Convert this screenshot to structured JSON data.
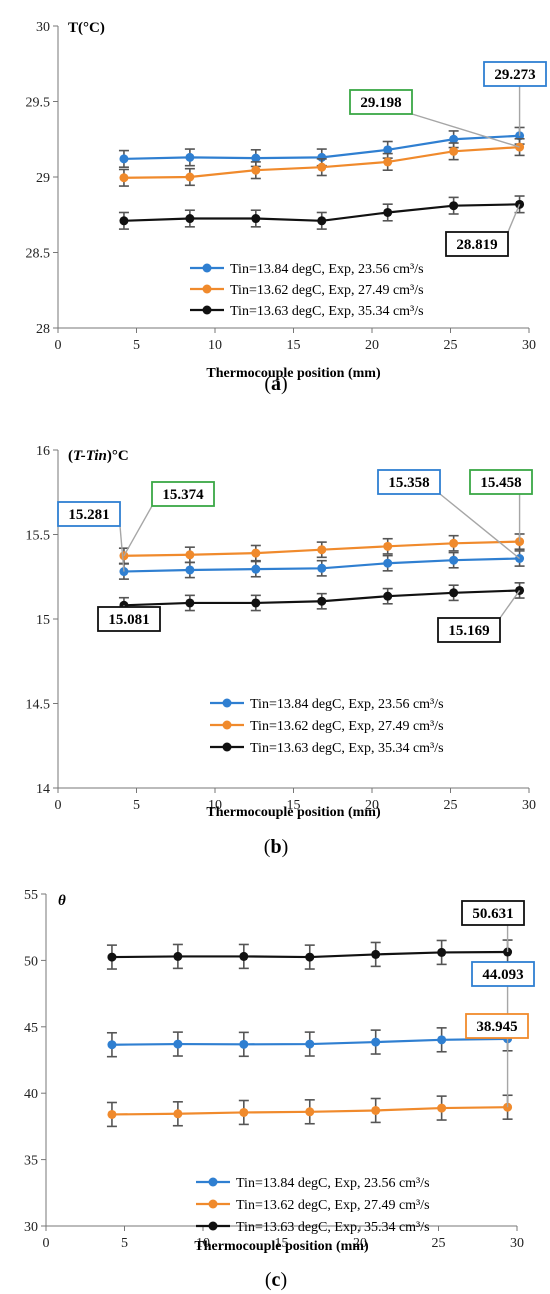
{
  "chart_data": [
    {
      "type": "line",
      "panel": "a",
      "corner_label": "T(°C)",
      "xlabel": "Thermocouple position (mm)",
      "xlim": [
        0,
        30
      ],
      "ylim": [
        28,
        30
      ],
      "xticks": [
        0,
        5,
        10,
        15,
        20,
        25,
        30
      ],
      "yticks": [
        28,
        28.5,
        29,
        29.5,
        30
      ],
      "x": [
        4.2,
        8.4,
        12.6,
        16.8,
        21,
        25.2,
        29.4
      ],
      "error": 0.055,
      "legend_position": "bottom-right",
      "series": [
        {
          "name": "Tin=13.84 degC, Exp, 23.56 cm³/s",
          "color": "#2f7fd1",
          "values": [
            29.12,
            29.13,
            29.125,
            29.13,
            29.18,
            29.25,
            29.273
          ]
        },
        {
          "name": "Tin=13.62 degC, Exp, 27.49 cm³/s",
          "color": "#f08a2c",
          "values": [
            28.995,
            29.0,
            29.045,
            29.065,
            29.1,
            29.17,
            29.198
          ]
        },
        {
          "name": "Tin=13.63 degC, Exp, 35.34 cm³/s",
          "color": "#111111",
          "values": [
            28.71,
            28.725,
            28.725,
            28.71,
            28.765,
            28.81,
            28.819
          ]
        }
      ],
      "callouts": [
        {
          "label": "29.273",
          "color": "#2f7fd1",
          "series": 0,
          "point": 6
        },
        {
          "label": "29.198",
          "color": "#3aa845",
          "series": 1,
          "point": 6
        },
        {
          "label": "28.819",
          "color": "#111111",
          "series": 2,
          "point": 6
        }
      ]
    },
    {
      "type": "line",
      "panel": "b",
      "corner_label": "(T-Tin)°C",
      "xlabel": "Thermocouple position (mm)",
      "xlim": [
        0,
        30
      ],
      "ylim": [
        14,
        16
      ],
      "xticks": [
        0,
        5,
        10,
        15,
        20,
        25,
        30
      ],
      "yticks": [
        14,
        14.5,
        15,
        15.5,
        16
      ],
      "x": [
        4.2,
        8.4,
        12.6,
        16.8,
        21,
        25.2,
        29.4
      ],
      "error": 0.045,
      "legend_position": "bottom-right",
      "series": [
        {
          "name": "Tin=13.84 degC, Exp, 23.56 cm³/s",
          "color": "#2f7fd1",
          "values": [
            15.281,
            15.29,
            15.295,
            15.3,
            15.33,
            15.348,
            15.358
          ]
        },
        {
          "name": "Tin=13.62 degC, Exp, 27.49 cm³/s",
          "color": "#f08a2c",
          "values": [
            15.374,
            15.38,
            15.39,
            15.41,
            15.43,
            15.448,
            15.458
          ]
        },
        {
          "name": "Tin=13.63 degC, Exp, 35.34 cm³/s",
          "color": "#111111",
          "values": [
            15.081,
            15.095,
            15.095,
            15.105,
            15.135,
            15.155,
            15.169
          ]
        }
      ],
      "callouts": [
        {
          "label": "15.281",
          "color": "#2f7fd1",
          "series": 0,
          "point": 0
        },
        {
          "label": "15.374",
          "color": "#3aa845",
          "series": 1,
          "point": 0
        },
        {
          "label": "15.358",
          "color": "#2f7fd1",
          "series": 0,
          "point": 6
        },
        {
          "label": "15.458",
          "color": "#3aa845",
          "series": 1,
          "point": 6
        },
        {
          "label": "15.081",
          "color": "#111111",
          "series": 2,
          "point": 0
        },
        {
          "label": "15.169",
          "color": "#111111",
          "series": 2,
          "point": 6
        }
      ]
    },
    {
      "type": "line",
      "panel": "c",
      "corner_label": "θ",
      "xlabel": "Thermocouple position (mm)",
      "xlim": [
        0,
        30
      ],
      "ylim": [
        30,
        55
      ],
      "xticks": [
        0,
        5,
        10,
        15,
        20,
        25,
        30
      ],
      "yticks": [
        30,
        35,
        40,
        45,
        50,
        55
      ],
      "x": [
        4.2,
        8.4,
        12.6,
        16.8,
        21,
        25.2,
        29.4
      ],
      "error": 0.9,
      "legend_position": "bottom-right",
      "series": [
        {
          "name": "Tin=13.84 degC, Exp, 23.56 cm³/s",
          "color": "#2f7fd1",
          "values": [
            43.65,
            43.7,
            43.68,
            43.7,
            43.85,
            44.02,
            44.093
          ]
        },
        {
          "name": "Tin=13.62 degC, Exp, 27.49 cm³/s",
          "color": "#f08a2c",
          "values": [
            38.4,
            38.45,
            38.55,
            38.6,
            38.7,
            38.88,
            38.945
          ]
        },
        {
          "name": "Tin=13.63 degC, Exp, 35.34 cm³/s",
          "color": "#111111",
          "values": [
            50.25,
            50.3,
            50.3,
            50.25,
            50.45,
            50.6,
            50.631
          ]
        }
      ],
      "callouts": [
        {
          "label": "50.631",
          "color": "#111111",
          "series": 2,
          "point": 6
        },
        {
          "label": "44.093",
          "color": "#2f7fd1",
          "series": 0,
          "point": 6
        },
        {
          "label": "38.945",
          "color": "#f08a2c",
          "series": 1,
          "point": 6
        }
      ]
    }
  ],
  "panel_labels": [
    {
      "pre": "(",
      "letter": "a",
      "post": ")"
    },
    {
      "pre": "(",
      "letter": "b",
      "post": ")"
    },
    {
      "pre": "(",
      "letter": "c",
      "post": ")"
    }
  ]
}
